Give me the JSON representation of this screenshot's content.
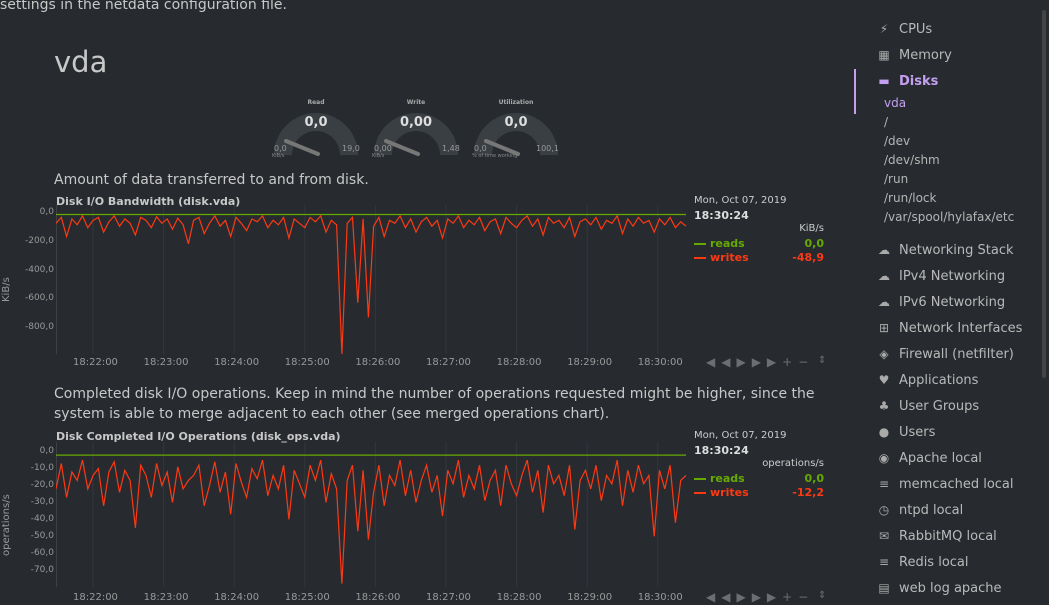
{
  "top_text": "settings in the netdata configuration file.",
  "section_title": "vda",
  "gauges": [
    {
      "title": "Read",
      "value": "0,0",
      "min": "0,0",
      "max": "19,0",
      "unit": "KiB/s",
      "level": 0.0
    },
    {
      "title": "Write",
      "value": "0,00",
      "min": "0,00",
      "max": "1,48",
      "unit": "KiB/s",
      "level": 0.0
    },
    {
      "title": "Utilization",
      "value": "0,0",
      "min": "0,0",
      "max": "100,1",
      "unit": "% of time working",
      "level": 0.0
    }
  ],
  "chart1": {
    "description": "Amount of data transferred to and from disk.",
    "title": "Disk I/O Bandwidth (disk.vda)",
    "ylabel": "KiB/s",
    "yticks": [
      "0,0",
      "-200,0",
      "-400,0",
      "-600,0",
      "-800,0"
    ],
    "xticks": [
      "18:22:00",
      "18:23:00",
      "18:24:00",
      "18:25:00",
      "18:26:00",
      "18:27:00",
      "18:28:00",
      "18:29:00",
      "18:30:00"
    ],
    "legend": {
      "date": "Mon, Oct 07, 2019",
      "time": "18:30:24",
      "units": "KiB/s",
      "series": [
        {
          "name": "reads",
          "value": "0,0",
          "color": "#66aa00"
        },
        {
          "name": "writes",
          "value": "-48,9",
          "color": "#fe3912"
        }
      ]
    },
    "controls": [
      "◀◀",
      "▶",
      "▶▶",
      "+",
      "−",
      "⇕"
    ]
  },
  "chart2": {
    "description_line1": "Completed disk I/O operations. Keep in mind the number of operations requested might be higher, since the",
    "description_line2": "system is able to merge adjacent to each other (see merged operations chart).",
    "title": "Disk Completed I/O Operations (disk_ops.vda)",
    "ylabel": "operations/s",
    "yticks": [
      "0,0",
      "-10,0",
      "-20,0",
      "-30,0",
      "-40,0",
      "-50,0",
      "-60,0",
      "-70,0"
    ],
    "xticks": [
      "18:22:00",
      "18:23:00",
      "18:24:00",
      "18:25:00",
      "18:26:00",
      "18:27:00",
      "18:28:00",
      "18:29:00",
      "18:30:00"
    ],
    "legend": {
      "date": "Mon, Oct 07, 2019",
      "time": "18:30:24",
      "units": "operations/s",
      "series": [
        {
          "name": "reads",
          "value": "0,0",
          "color": "#66aa00"
        },
        {
          "name": "writes",
          "value": "-12,2",
          "color": "#fe3912"
        }
      ]
    },
    "controls": [
      "◀◀",
      "▶",
      "▶▶",
      "+",
      "−",
      "⇕"
    ]
  },
  "chart_data": [
    {
      "type": "line",
      "title": "Disk I/O Bandwidth (disk.vda)",
      "ylabel": "KiB/s",
      "ylim": [
        -950,
        10
      ],
      "x_range": [
        "18:21:30",
        "18:30:24"
      ],
      "series": [
        {
          "name": "reads",
          "values": [
            0,
            0,
            0,
            0,
            0,
            0,
            0,
            0,
            0,
            0,
            0,
            0,
            0,
            0,
            0,
            0,
            0,
            0,
            0,
            0,
            0,
            0,
            0,
            0,
            0,
            0,
            0,
            0,
            0,
            0,
            0,
            0,
            0,
            0,
            0,
            0,
            0,
            0,
            0,
            0,
            0,
            0,
            0,
            0,
            0,
            0,
            0,
            0,
            0,
            0,
            0,
            0,
            0,
            0,
            0,
            0,
            0,
            0,
            0,
            0,
            0,
            0,
            0,
            0,
            0,
            0,
            0,
            0,
            0,
            0,
            0,
            0,
            0,
            0,
            0,
            0,
            0,
            0,
            0,
            0,
            0,
            0,
            0,
            0,
            0,
            0,
            0,
            0,
            0,
            0,
            0,
            0,
            0,
            0,
            0,
            0,
            0,
            0,
            0,
            0,
            0,
            0,
            0,
            0,
            0,
            0,
            0,
            0,
            0,
            0,
            0,
            0,
            0,
            0,
            0,
            0,
            0,
            0,
            0,
            0
          ]
        },
        {
          "name": "writes",
          "values": [
            -60,
            -20,
            -150,
            -30,
            -70,
            -10,
            -90,
            -40,
            -20,
            -120,
            -50,
            -10,
            -80,
            -30,
            -60,
            -140,
            -20,
            -40,
            -90,
            -15,
            -60,
            -30,
            -100,
            -25,
            -70,
            -200,
            -40,
            -20,
            -130,
            -60,
            -10,
            -80,
            -40,
            -150,
            -20,
            -60,
            -110,
            -30,
            -50,
            -10,
            -90,
            -40,
            -70,
            -20,
            -160,
            -30,
            -60,
            -90,
            -20,
            -50,
            -10,
            -120,
            -40,
            -70,
            -950,
            -60,
            -20,
            -600,
            -30,
            -700,
            -80,
            -20,
            -150,
            -40,
            -60,
            -10,
            -90,
            -30,
            -120,
            -50,
            -20,
            -80,
            -40,
            -160,
            -30,
            -60,
            -10,
            -90,
            -40,
            -70,
            -20,
            -110,
            -50,
            -30,
            -130,
            -20,
            -60,
            -90,
            -40,
            -10,
            -80,
            -30,
            -140,
            -20,
            -60,
            -40,
            -90,
            -20,
            -150,
            -50,
            -30,
            -70,
            -20,
            -100,
            -40,
            -60,
            -10,
            -130,
            -30,
            -80,
            -20,
            -60,
            -40,
            -120,
            -30,
            -70,
            -20,
            -90,
            -50,
            -80
          ]
        }
      ]
    },
    {
      "type": "line",
      "title": "Disk Completed I/O Operations (disk_ops.vda)",
      "ylabel": "operations/s",
      "ylim": [
        -78,
        3
      ],
      "x_range": [
        "18:21:30",
        "18:30:24"
      ],
      "series": [
        {
          "name": "reads",
          "values": [
            0,
            0,
            0,
            0,
            0,
            0,
            0,
            0,
            0,
            0,
            0,
            0,
            0,
            0,
            0,
            0,
            0,
            0,
            0,
            0,
            0,
            0,
            0,
            0,
            0,
            0,
            0,
            0,
            0,
            0,
            0,
            0,
            0,
            0,
            0,
            0,
            0,
            0,
            0,
            0,
            0,
            0,
            0,
            0,
            0,
            0,
            0,
            0,
            0,
            0,
            0,
            0,
            0,
            0,
            0,
            0,
            0,
            0,
            0,
            0,
            0,
            0,
            0,
            0,
            0,
            0,
            0,
            0,
            0,
            0,
            0,
            0,
            0,
            0,
            0,
            0,
            0,
            0,
            0,
            0,
            0,
            0,
            0,
            0,
            0,
            0,
            0,
            0,
            0,
            0,
            0,
            0,
            0,
            0,
            0,
            0,
            0,
            0,
            0,
            0,
            0,
            0,
            0,
            0,
            0,
            0,
            0,
            0,
            0,
            0,
            0,
            0,
            0,
            0,
            0,
            0,
            0,
            0,
            0,
            0
          ]
        },
        {
          "name": "writes",
          "values": [
            -20,
            -5,
            -25,
            -10,
            -15,
            -3,
            -20,
            -12,
            -8,
            -30,
            -10,
            -4,
            -22,
            -9,
            -15,
            -43,
            -6,
            -12,
            -25,
            -5,
            -18,
            -10,
            -28,
            -7,
            -20,
            -15,
            -12,
            -6,
            -30,
            -18,
            -4,
            -22,
            -10,
            -35,
            -5,
            -16,
            -25,
            -8,
            -14,
            -3,
            -24,
            -12,
            -20,
            -6,
            -38,
            -9,
            -17,
            -25,
            -6,
            -15,
            -3,
            -28,
            -11,
            -20,
            -76,
            -15,
            -6,
            -45,
            -9,
            -50,
            -22,
            -6,
            -30,
            -12,
            -18,
            -3,
            -24,
            -9,
            -28,
            -15,
            -6,
            -22,
            -12,
            -36,
            -9,
            -17,
            -3,
            -25,
            -12,
            -20,
            -6,
            -27,
            -15,
            -9,
            -30,
            -6,
            -17,
            -24,
            -12,
            -3,
            -22,
            -9,
            -34,
            -6,
            -17,
            -12,
            -24,
            -6,
            -44,
            -15,
            -9,
            -20,
            -6,
            -27,
            -12,
            -17,
            -3,
            -30,
            -9,
            -22,
            -6,
            -17,
            -12,
            -48,
            -9,
            -20,
            -6,
            -40,
            -15,
            -12
          ]
        }
      ]
    }
  ],
  "sidebar": {
    "items_top": [
      {
        "label": "CPUs",
        "icon": "bolt-icon",
        "glyph": "⚡"
      },
      {
        "label": "Memory",
        "icon": "memory-chip-icon",
        "glyph": "▦"
      },
      {
        "label": "Disks",
        "icon": "hdd-icon",
        "glyph": "▬"
      }
    ],
    "disk_sub": [
      "vda",
      "/",
      "/dev",
      "/dev/shm",
      "/run",
      "/run/lock",
      "/var/spool/hylafax/etc"
    ],
    "items_bottom": [
      {
        "label": "Networking Stack",
        "icon": "cloud-icon",
        "glyph": "☁"
      },
      {
        "label": "IPv4 Networking",
        "icon": "cloud-icon",
        "glyph": "☁"
      },
      {
        "label": "IPv6 Networking",
        "icon": "cloud-icon",
        "glyph": "☁"
      },
      {
        "label": "Network Interfaces",
        "icon": "network-icon",
        "glyph": "⊞"
      },
      {
        "label": "Firewall (netfilter)",
        "icon": "shield-icon",
        "glyph": "◈"
      },
      {
        "label": "Applications",
        "icon": "heartbeat-icon",
        "glyph": "♥"
      },
      {
        "label": "User Groups",
        "icon": "users-icon",
        "glyph": "♣"
      },
      {
        "label": "Users",
        "icon": "user-icon",
        "glyph": "●"
      },
      {
        "label": "Apache local",
        "icon": "eye-icon",
        "glyph": "◉"
      },
      {
        "label": "memcached local",
        "icon": "database-icon",
        "glyph": "≡"
      },
      {
        "label": "ntpd local",
        "icon": "clock-icon",
        "glyph": "◷"
      },
      {
        "label": "RabbitMQ local",
        "icon": "comments-icon",
        "glyph": "✉"
      },
      {
        "label": "Redis local",
        "icon": "database-icon",
        "glyph": "≡"
      },
      {
        "label": "web log apache",
        "icon": "file-icon",
        "glyph": "▤"
      }
    ],
    "accent": "#c3a0f0"
  }
}
